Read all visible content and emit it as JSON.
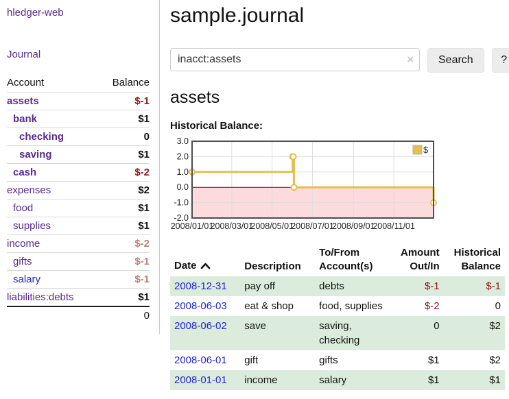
{
  "sidebar": {
    "app_title": "hledger-web",
    "journal_link": "Journal",
    "accounts": {
      "headers": {
        "account": "Account",
        "balance": "Balance"
      },
      "rows": [
        {
          "name": "assets",
          "indent": 0,
          "bold": true,
          "link_style": "purple",
          "balance": "$-1",
          "balance_style": "neg-strong"
        },
        {
          "name": "bank",
          "indent": 1,
          "bold": true,
          "link_style": "purple",
          "balance": "$1",
          "balance_style": ""
        },
        {
          "name": "checking",
          "indent": 2,
          "bold": true,
          "link_style": "purple",
          "balance": "0",
          "balance_style": ""
        },
        {
          "name": "saving",
          "indent": 2,
          "bold": true,
          "link_style": "purple",
          "balance": "$1",
          "balance_style": ""
        },
        {
          "name": "cash",
          "indent": 1,
          "bold": true,
          "link_style": "purple",
          "balance": "$-2",
          "balance_style": "neg-strong"
        },
        {
          "name": "expenses",
          "indent": 0,
          "bold": false,
          "link_style": "purple",
          "balance": "$2",
          "balance_style": ""
        },
        {
          "name": "food",
          "indent": 1,
          "bold": false,
          "link_style": "purple",
          "balance": "$1",
          "balance_style": ""
        },
        {
          "name": "supplies",
          "indent": 1,
          "bold": false,
          "link_style": "purple",
          "balance": "$1",
          "balance_style": ""
        },
        {
          "name": "income",
          "indent": 0,
          "bold": false,
          "link_style": "purple",
          "balance": "$-2",
          "balance_style": "neg-soft"
        },
        {
          "name": "gifts",
          "indent": 1,
          "bold": false,
          "link_style": "purple",
          "balance": "$-1",
          "balance_style": "neg-soft"
        },
        {
          "name": "salary",
          "indent": 1,
          "bold": false,
          "link_style": "blue",
          "balance": "$-1",
          "balance_style": "neg-soft"
        },
        {
          "name": "liabilities:debts",
          "indent": 0,
          "bold": false,
          "link_style": "purple",
          "balance": "$1",
          "balance_style": ""
        }
      ],
      "total": "0"
    }
  },
  "header": {
    "title": "sample.journal"
  },
  "search": {
    "value": "inacct:assets",
    "placeholder": "",
    "clear_icon": "×",
    "button_label": "Search",
    "help_label": "?"
  },
  "register": {
    "heading": "assets",
    "chart_label": "Historical Balance:",
    "table": {
      "headers": {
        "date": "Date",
        "description": "Description",
        "accounts": "To/From Account(s)",
        "amount": "Amount Out/In",
        "balance": "Historical Balance"
      },
      "rows": [
        {
          "date": "2008-12-31",
          "description": "pay off",
          "accounts": "debts",
          "amount": "$-1",
          "amount_neg": true,
          "balance": "$-1",
          "balance_neg": true
        },
        {
          "date": "2008-06-03",
          "description": "eat & shop",
          "accounts": "food, supplies",
          "amount": "$-2",
          "amount_neg": true,
          "balance": "0",
          "balance_neg": false
        },
        {
          "date": "2008-06-02",
          "description": "save",
          "accounts": "saving, checking",
          "amount": "0",
          "amount_neg": false,
          "balance": "$2",
          "balance_neg": false
        },
        {
          "date": "2008-06-01",
          "description": "gift",
          "accounts": "gifts",
          "amount": "$1",
          "amount_neg": false,
          "balance": "$2",
          "balance_neg": false
        },
        {
          "date": "2008-01-01",
          "description": "income",
          "accounts": "salary",
          "amount": "$1",
          "amount_neg": false,
          "balance": "$1",
          "balance_neg": false
        }
      ]
    }
  },
  "chart_data": {
    "type": "line",
    "step": true,
    "legend_label": "$",
    "legend_position": "top-right",
    "x_domain": [
      "2008-01-01",
      "2008-12-31"
    ],
    "ylim": [
      -2,
      3
    ],
    "y_ticks": [
      "3.0",
      "2.0",
      "1.0",
      "0.0",
      "-1.0",
      "-2.0"
    ],
    "x_ticks": [
      {
        "label": "2008/01/01",
        "date": "2008-01-01"
      },
      {
        "label": "2008/03/01",
        "date": "2008-03-01"
      },
      {
        "label": "2008/05/01",
        "date": "2008-05-01"
      },
      {
        "label": "2008/07/01",
        "date": "2008-07-01"
      },
      {
        "label": "2008/09/01",
        "date": "2008-09-01"
      },
      {
        "label": "2008/11/01",
        "date": "2008-11-01"
      }
    ],
    "points": [
      {
        "date": "2008-01-01",
        "value": 1
      },
      {
        "date": "2008-06-01",
        "value": 2
      },
      {
        "date": "2008-06-02",
        "value": 2
      },
      {
        "date": "2008-06-03",
        "value": 0
      },
      {
        "date": "2008-12-31",
        "value": -1
      }
    ],
    "colors": {
      "line": "#e4bf4f",
      "marker_fill": "#ffffff",
      "below_zero_fill": "#fbdbdb",
      "zero_line": "#990000",
      "grid": "#dddddd",
      "border": "#4d4d4d",
      "legend_border": "#b5b5b5"
    }
  },
  "colors": {
    "link_purple": "#572a8f",
    "link_blue": "#2525d3",
    "negative_strong": "#8e1515",
    "negative_soft": "#bd7f7f",
    "row_stripe_green": "#dcecdc"
  }
}
